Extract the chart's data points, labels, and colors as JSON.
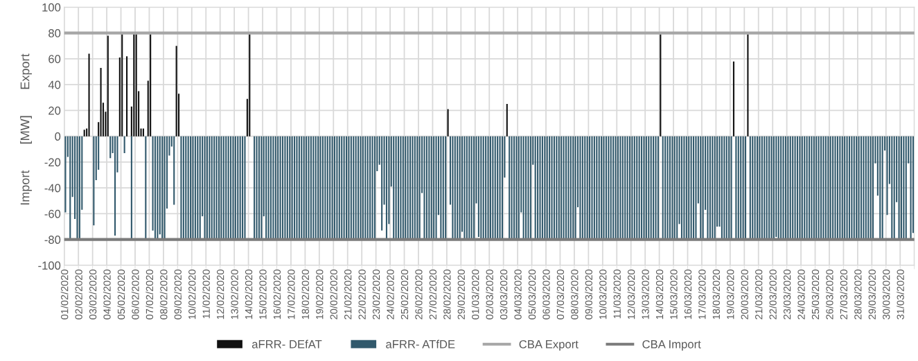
{
  "chart_data": {
    "type": "bar",
    "ylabel": "Import [MW] Export",
    "categories": [
      "01/02/2020",
      null,
      null,
      null,
      null,
      null,
      "02/02/2020",
      null,
      null,
      null,
      null,
      null,
      "03/02/2020",
      null,
      null,
      null,
      null,
      null,
      "04/02/2020",
      null,
      null,
      null,
      null,
      null,
      "05/02/2020",
      null,
      null,
      null,
      null,
      null,
      "06/02/2020",
      null,
      null,
      null,
      null,
      null,
      "07/02/2020",
      null,
      null,
      null,
      null,
      null,
      "08/02/2020",
      null,
      null,
      null,
      null,
      null,
      "09/02/2020",
      null,
      null,
      null,
      null,
      null,
      "10/02/2020",
      null,
      null,
      null,
      null,
      null,
      "11/02/2020",
      null,
      null,
      null,
      null,
      null,
      "12/02/2020",
      null,
      null,
      null,
      null,
      null,
      "13/02/2020",
      null,
      null,
      null,
      null,
      null,
      "14/02/2020",
      null,
      null,
      null,
      null,
      null,
      "15/02/2020",
      null,
      null,
      null,
      null,
      null,
      "16/02/2020",
      null,
      null,
      null,
      null,
      null,
      "17/02/2020",
      null,
      null,
      null,
      null,
      null,
      "18/02/2020",
      null,
      null,
      null,
      null,
      null,
      "19/02/2020",
      null,
      null,
      null,
      null,
      null,
      "20/02/2020",
      null,
      null,
      null,
      null,
      null,
      "21/02/2020",
      null,
      null,
      null,
      null,
      null,
      "22/02/2020",
      null,
      null,
      null,
      null,
      null,
      "23/02/2020",
      null,
      null,
      null,
      null,
      null,
      "24/02/2020",
      null,
      null,
      null,
      null,
      null,
      "25/02/2020",
      null,
      null,
      null,
      null,
      null,
      "26/02/2020",
      null,
      null,
      null,
      null,
      null,
      "27/02/2020",
      null,
      null,
      null,
      null,
      null,
      "28/02/2020",
      null,
      null,
      null,
      null,
      null,
      "29/02/2020",
      null,
      null,
      null,
      null,
      null,
      "01/03/2020",
      null,
      null,
      null,
      null,
      null,
      "02/03/2020",
      null,
      null,
      null,
      null,
      null,
      "03/03/2020",
      null,
      null,
      null,
      null,
      null,
      "04/03/2020",
      null,
      null,
      null,
      null,
      null,
      "05/03/2020",
      null,
      null,
      null,
      null,
      null,
      "06/03/2020",
      null,
      null,
      null,
      null,
      null,
      "07/03/2020",
      null,
      null,
      null,
      null,
      null,
      "08/03/2020",
      null,
      null,
      null,
      null,
      null,
      "09/03/2020",
      null,
      null,
      null,
      null,
      null,
      "10/03/2020",
      null,
      null,
      null,
      null,
      null,
      "11/03/2020",
      null,
      null,
      null,
      null,
      null,
      "12/03/2020",
      null,
      null,
      null,
      null,
      null,
      "13/03/2020",
      null,
      null,
      null,
      null,
      null,
      "14/03/2020",
      null,
      null,
      null,
      null,
      null,
      "15/03/2020",
      null,
      null,
      null,
      null,
      null,
      "16/03/2020",
      null,
      null,
      null,
      null,
      null,
      "17/03/2020",
      null,
      null,
      null,
      null,
      null,
      "18/03/2020",
      null,
      null,
      null,
      null,
      null,
      "19/03/2020",
      null,
      null,
      null,
      null,
      null,
      "20/03/2020",
      null,
      null,
      null,
      null,
      null,
      "21/03/2020",
      null,
      null,
      null,
      null,
      null,
      "22/03/2020",
      null,
      null,
      null,
      null,
      null,
      "23/03/2020",
      null,
      null,
      null,
      null,
      null,
      "24/03/2020",
      null,
      null,
      null,
      null,
      null,
      "25/03/2020",
      null,
      null,
      null,
      null,
      null,
      "26/03/2020",
      null,
      null,
      null,
      null,
      null,
      "27/03/2020",
      null,
      null,
      null,
      null,
      null,
      "28/03/2020",
      null,
      null,
      null,
      null,
      null,
      "29/03/2020",
      null,
      null,
      null,
      null,
      null,
      "30/03/2020",
      null,
      null,
      null,
      null,
      null,
      "31/03/2020",
      null,
      null,
      null,
      null,
      null
    ],
    "series": [
      {
        "name": "aFRR- DEfAT",
        "color": "#111111",
        "values": [
          0,
          0,
          0,
          0,
          0,
          0,
          0,
          0,
          5,
          6,
          64,
          0,
          0,
          0,
          11,
          53,
          26,
          19,
          78,
          0,
          0,
          0,
          0,
          61,
          79,
          0,
          62,
          0,
          23,
          79,
          79,
          35,
          6,
          6,
          0,
          43,
          79,
          0,
          0,
          0,
          0,
          0,
          0,
          0,
          0,
          0,
          0,
          70,
          33,
          0,
          0,
          0,
          0,
          0,
          0,
          0,
          0,
          0,
          0,
          0,
          0,
          0,
          0,
          0,
          0,
          0,
          0,
          0,
          0,
          0,
          0,
          0,
          0,
          0,
          0,
          0,
          0,
          29,
          79,
          0,
          0,
          0,
          0,
          0,
          0,
          0,
          0,
          0,
          0,
          0,
          0,
          0,
          0,
          0,
          0,
          0,
          0,
          0,
          0,
          0,
          0,
          0,
          0,
          0,
          0,
          0,
          0,
          0,
          0,
          0,
          0,
          0,
          0,
          0,
          0,
          0,
          0,
          0,
          0,
          0,
          0,
          0,
          0,
          0,
          0,
          0,
          0,
          0,
          0,
          0,
          0,
          0,
          0,
          0,
          0,
          0,
          0,
          0,
          0,
          0,
          0,
          0,
          0,
          0,
          0,
          0,
          0,
          0,
          0,
          0,
          0,
          0,
          0,
          0,
          0,
          0,
          0,
          0,
          0,
          0,
          0,
          0,
          21,
          0,
          0,
          0,
          0,
          0,
          0,
          0,
          0,
          0,
          0,
          0,
          0,
          0,
          0,
          0,
          0,
          0,
          0,
          0,
          0,
          0,
          0,
          0,
          0,
          25,
          0,
          0,
          0,
          0,
          0,
          0,
          0,
          0,
          0,
          0,
          0,
          0,
          0,
          0,
          0,
          0,
          0,
          0,
          0,
          0,
          0,
          0,
          0,
          0,
          0,
          0,
          0,
          0,
          0,
          0,
          0,
          0,
          0,
          0,
          0,
          0,
          0,
          0,
          0,
          0,
          0,
          0,
          0,
          0,
          0,
          0,
          0,
          0,
          0,
          0,
          0,
          0,
          0,
          0,
          0,
          0,
          0,
          0,
          0,
          0,
          0,
          0,
          0,
          0,
          79,
          0,
          0,
          0,
          0,
          0,
          0,
          0,
          0,
          0,
          0,
          0,
          0,
          0,
          0,
          0,
          0,
          0,
          0,
          0,
          0,
          0,
          0,
          0,
          0,
          0,
          0,
          0,
          0,
          0,
          0,
          58,
          0,
          0,
          0,
          0,
          0,
          79,
          0,
          0,
          0,
          0,
          0,
          0,
          0,
          0,
          0,
          0,
          0,
          0,
          0,
          0,
          0,
          0,
          0,
          0,
          0,
          0,
          0,
          0,
          0,
          0,
          0,
          0,
          0,
          0,
          0,
          0,
          0,
          0,
          0,
          0,
          0,
          0,
          0,
          0,
          0,
          0,
          0,
          0,
          0,
          0,
          0,
          0,
          0,
          0,
          0,
          0,
          0,
          0,
          0,
          0,
          0,
          0,
          0,
          0,
          0,
          0,
          0,
          0,
          0,
          0,
          0,
          0,
          0,
          0,
          0,
          0
        ]
      },
      {
        "name": "aFRR- ATfDE",
        "color": "#31596c",
        "values": [
          -59,
          -16,
          -80,
          -47,
          -64,
          -80,
          -80,
          -57,
          0,
          0,
          0,
          0,
          -69,
          -34,
          -26,
          0,
          0,
          0,
          0,
          -17,
          -13,
          -77,
          -28,
          0,
          0,
          -13,
          0,
          0,
          -80,
          0,
          0,
          0,
          0,
          0,
          -80,
          0,
          0,
          -73,
          -80,
          -80,
          -76,
          -80,
          -80,
          -56,
          -15,
          -8,
          -53,
          0,
          0,
          -80,
          -80,
          -80,
          -80,
          -80,
          -80,
          -80,
          -80,
          -80,
          -62,
          -80,
          -80,
          -80,
          -80,
          -80,
          -80,
          -80,
          -80,
          -80,
          -80,
          -80,
          -80,
          -80,
          -80,
          -80,
          -80,
          -80,
          -80,
          0,
          0,
          0,
          -80,
          -80,
          -80,
          -80,
          -62,
          -80,
          -80,
          -80,
          -80,
          -80,
          -80,
          -80,
          -80,
          -80,
          -80,
          -80,
          -80,
          -80,
          -80,
          -80,
          -80,
          -80,
          -80,
          -80,
          -80,
          -80,
          -80,
          -80,
          -80,
          -80,
          -80,
          -80,
          -80,
          -80,
          -80,
          -80,
          -80,
          -80,
          -80,
          -80,
          -80,
          -80,
          -80,
          -80,
          -80,
          -80,
          -80,
          -80,
          -80,
          -80,
          -80,
          -80,
          -27,
          -22,
          -73,
          -53,
          -80,
          -68,
          -39,
          -80,
          -80,
          -80,
          -80,
          -80,
          -80,
          -80,
          -80,
          -80,
          -80,
          -80,
          -80,
          -44,
          -80,
          -80,
          -80,
          -80,
          -80,
          -80,
          -61,
          -80,
          -80,
          -80,
          0,
          -53,
          -80,
          -80,
          -80,
          -80,
          -74,
          -80,
          -80,
          -80,
          -80,
          -80,
          -52,
          -78,
          -80,
          -80,
          -80,
          -80,
          -80,
          -80,
          -80,
          -80,
          -80,
          -80,
          -32,
          0,
          -80,
          -80,
          -80,
          -80,
          -80,
          -59,
          -80,
          -80,
          -80,
          -80,
          -22,
          -80,
          -80,
          -80,
          -80,
          -80,
          -80,
          -80,
          -80,
          -80,
          -80,
          -80,
          -80,
          -80,
          -80,
          -80,
          -80,
          -80,
          -80,
          -55,
          -80,
          -80,
          -80,
          -80,
          -80,
          -80,
          -80,
          -80,
          -80,
          -80,
          -80,
          -80,
          -80,
          -80,
          -80,
          -80,
          -80,
          -80,
          -80,
          -80,
          -80,
          -80,
          -80,
          -80,
          -80,
          -80,
          -80,
          -80,
          -80,
          -80,
          -80,
          -80,
          -80,
          -80,
          0,
          -80,
          -80,
          -80,
          -80,
          -80,
          -80,
          -80,
          -68,
          -80,
          -80,
          -80,
          -80,
          -80,
          -80,
          -80,
          -52,
          -80,
          -80,
          -57,
          -80,
          -80,
          -80,
          -80,
          -70,
          -70,
          -80,
          -80,
          -80,
          -80,
          -80,
          0,
          -80,
          -80,
          -80,
          -80,
          -80,
          0,
          -80,
          -80,
          -80,
          -80,
          -80,
          -80,
          -80,
          -80,
          -80,
          -80,
          -80,
          -78,
          -80,
          -80,
          -80,
          -80,
          -80,
          -80,
          -80,
          -80,
          -80,
          -80,
          -80,
          -80,
          -80,
          -80,
          -80,
          -80,
          -80,
          -80,
          -80,
          -80,
          -80,
          -80,
          -80,
          -80,
          -80,
          -80,
          -80,
          -80,
          -80,
          -80,
          -80,
          -80,
          -80,
          -80,
          -80,
          -80,
          -80,
          -80,
          -80,
          -80,
          -80,
          -21,
          -46,
          -80,
          -80,
          -11,
          -61,
          -37,
          -80,
          -80,
          -51,
          -80,
          -80,
          -80,
          -80,
          -21,
          -80,
          -75
        ]
      }
    ],
    "ref_lines": [
      {
        "axis": "y",
        "value": 80,
        "label": "CBA Export",
        "color": "#a6a6a6"
      },
      {
        "axis": "y",
        "value": -80,
        "label": "CBA Import",
        "color": "#7b7b7b"
      }
    ],
    "ylim": [
      -100,
      100
    ],
    "yticks": [
      -100,
      -80,
      -60,
      -40,
      -20,
      0,
      20,
      40,
      60,
      80,
      100
    ],
    "grid": true,
    "legend": "bottom"
  }
}
